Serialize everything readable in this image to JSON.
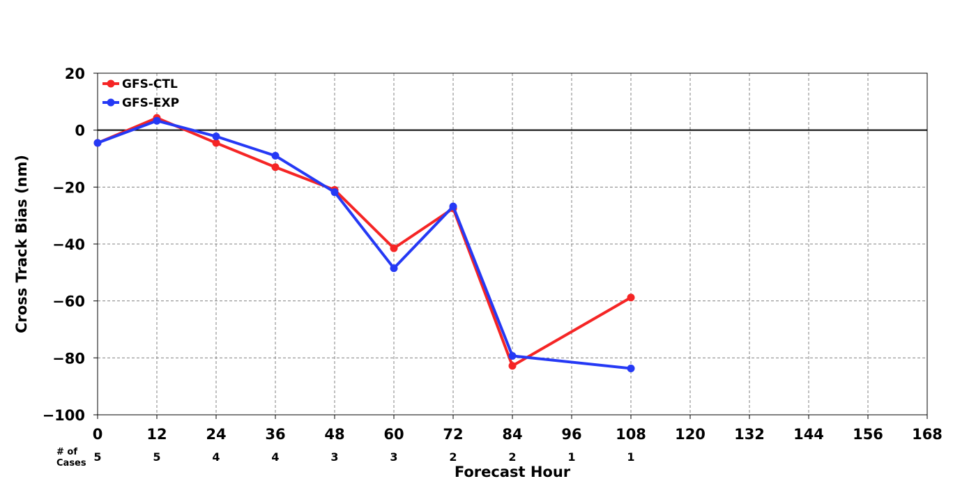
{
  "chart_data": {
    "type": "line",
    "xlabel": "Forecast Hour",
    "ylabel": "Cross Track Bias (nm)",
    "xlim": [
      0,
      168
    ],
    "ylim": [
      -100,
      20
    ],
    "x_ticks": [
      "0",
      "12",
      "24",
      "36",
      "48",
      "60",
      "72",
      "84",
      "96",
      "108",
      "120",
      "132",
      "144",
      "156",
      "168"
    ],
    "y_ticks": [
      "20",
      "0",
      "−20",
      "−40",
      "−60",
      "−80",
      "−100"
    ],
    "grid": true,
    "zero_line": true,
    "legend_position": "top-left",
    "cases_header": [
      "# of",
      "Cases"
    ],
    "cases": [
      {
        "x": 0,
        "n": "5"
      },
      {
        "x": 12,
        "n": "5"
      },
      {
        "x": 24,
        "n": "4"
      },
      {
        "x": 36,
        "n": "4"
      },
      {
        "x": 48,
        "n": "3"
      },
      {
        "x": 60,
        "n": "3"
      },
      {
        "x": 72,
        "n": "2"
      },
      {
        "x": 84,
        "n": "2"
      },
      {
        "x": 96,
        "n": "1"
      },
      {
        "x": 108,
        "n": "1"
      }
    ],
    "series": [
      {
        "name": "GFS-CTL",
        "color": "#f52525",
        "x": [
          0,
          12,
          24,
          36,
          48,
          60,
          72,
          84,
          108
        ],
        "values": [
          -4.5,
          4.3,
          -4.5,
          -13.0,
          -21.0,
          -41.5,
          -27.5,
          -82.8,
          -58.8
        ]
      },
      {
        "name": "GFS-EXP",
        "color": "#2539f5",
        "x": [
          0,
          12,
          24,
          36,
          48,
          60,
          72,
          84,
          108
        ],
        "values": [
          -4.5,
          3.3,
          -2.2,
          -9.0,
          -21.8,
          -48.5,
          -26.8,
          -79.3,
          -83.7
        ]
      }
    ]
  }
}
